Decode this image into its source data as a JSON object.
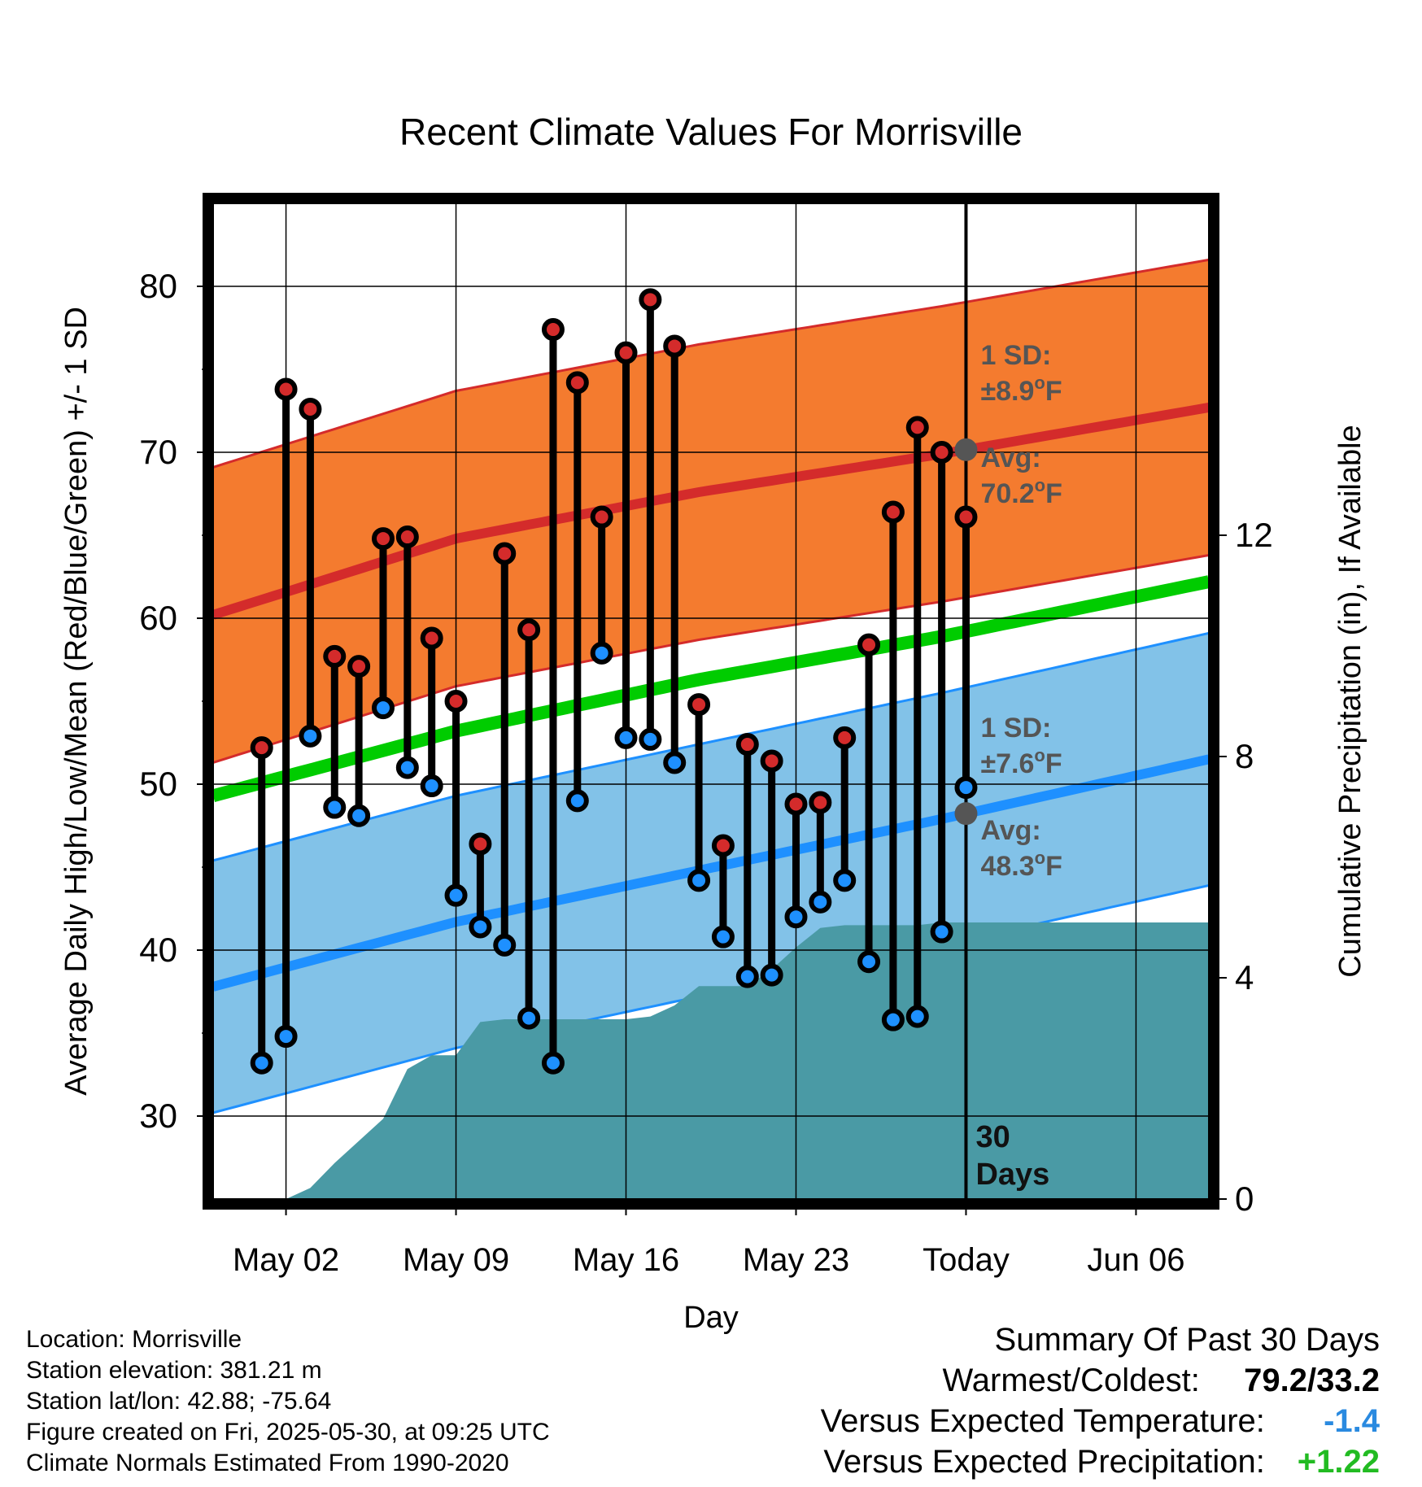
{
  "chart_data": {
    "type": "line",
    "title": "Recent Climate Values For Morrisville",
    "xlabel": "Day",
    "ylabel": "Average Daily High/Low/Mean (Red/Blue/Green) +/- 1 SD",
    "y2label": "Cumulative Precipitation (in), If Available",
    "ylim": [
      25,
      85
    ],
    "y_ticks": [
      30,
      40,
      50,
      60,
      70,
      80
    ],
    "y2lim": [
      0,
      18
    ],
    "y2_ticks": [
      0,
      4,
      8,
      12
    ],
    "x_dates": [
      "Apr 29",
      "Jun 09"
    ],
    "x_tick_dates": [
      "May 02",
      "May 09",
      "May 16",
      "May 23",
      "May 30",
      "Jun 06"
    ],
    "x_tick_labels": [
      "May 02",
      "May 09",
      "May 16",
      "May 23",
      "Today",
      "Jun 06"
    ],
    "grid": true,
    "today": "May 30",
    "today_label": "30\nDays",
    "normals": {
      "dates": [
        "Apr 29",
        "May 09",
        "May 19",
        "May 29",
        "Jun 09"
      ],
      "avg_high": [
        60.2,
        64.8,
        67.6,
        69.9,
        72.7
      ],
      "avg_low": [
        37.8,
        41.7,
        44.8,
        47.9,
        51.5
      ],
      "avg_mean": [
        49.3,
        53.2,
        56.3,
        58.9,
        62.2
      ],
      "high_sd": 8.9,
      "low_sd": 7.6
    },
    "series": [
      {
        "name": "High",
        "dates": [
          "May 01",
          "May 02",
          "May 03",
          "May 04",
          "May 05",
          "May 06",
          "May 07",
          "May 08",
          "May 09",
          "May 10",
          "May 11",
          "May 12",
          "May 13",
          "May 14",
          "May 15",
          "May 16",
          "May 17",
          "May 18",
          "May 19",
          "May 20",
          "May 21",
          "May 22",
          "May 23",
          "May 24",
          "May 25",
          "May 26",
          "May 27",
          "May 28",
          "May 29",
          "May 30"
        ],
        "values": [
          52.2,
          73.8,
          72.6,
          57.7,
          57.1,
          64.8,
          64.9,
          58.8,
          55.0,
          46.4,
          63.9,
          59.3,
          77.4,
          74.2,
          66.1,
          76.0,
          79.2,
          76.4,
          54.8,
          46.3,
          52.4,
          51.4,
          48.8,
          48.9,
          52.8,
          58.4,
          66.4,
          71.5,
          70.0,
          66.1
        ]
      },
      {
        "name": "Low",
        "dates": [
          "May 01",
          "May 02",
          "May 03",
          "May 04",
          "May 05",
          "May 06",
          "May 07",
          "May 08",
          "May 09",
          "May 10",
          "May 11",
          "May 12",
          "May 13",
          "May 14",
          "May 15",
          "May 16",
          "May 17",
          "May 18",
          "May 19",
          "May 20",
          "May 21",
          "May 22",
          "May 23",
          "May 24",
          "May 25",
          "May 26",
          "May 27",
          "May 28",
          "May 29",
          "May 30"
        ],
        "values": [
          33.2,
          34.8,
          52.9,
          48.6,
          48.1,
          54.6,
          51.0,
          49.9,
          43.3,
          41.4,
          40.3,
          35.9,
          33.2,
          49.0,
          57.9,
          52.8,
          52.7,
          51.3,
          44.2,
          40.8,
          38.4,
          38.5,
          42.0,
          42.9,
          44.2,
          39.3,
          35.8,
          36.0,
          41.1,
          49.8
        ]
      },
      {
        "name": "Cumulative Precipitation",
        "dates": [
          "Apr 29",
          "May 02",
          "May 03",
          "May 04",
          "May 05",
          "May 06",
          "May 07",
          "May 08",
          "May 09",
          "May 10",
          "May 11",
          "May 12",
          "May 13",
          "May 14",
          "May 15",
          "May 16",
          "May 17",
          "May 18",
          "May 19",
          "May 20",
          "May 21",
          "May 22",
          "May 23",
          "May 24",
          "May 25",
          "May 26",
          "May 27",
          "May 28",
          "May 29",
          "May 30",
          "Jun 09"
        ],
        "values": [
          0,
          0,
          0.2,
          0.65,
          1.05,
          1.45,
          2.35,
          2.6,
          2.6,
          3.2,
          3.25,
          3.25,
          3.25,
          3.25,
          3.25,
          3.25,
          3.3,
          3.5,
          3.85,
          3.85,
          3.85,
          4.15,
          4.55,
          4.9,
          4.95,
          4.95,
          4.95,
          4.95,
          5.0,
          5.0,
          5.0
        ]
      }
    ],
    "annotations": {
      "high_sd_label": "1 SD:",
      "high_sd_value": "±8.9",
      "high_avg_label": "Avg:",
      "high_avg_value": "70.2",
      "low_sd_label": "1 SD:",
      "low_sd_value": "±7.6",
      "low_avg_label": "Avg:",
      "low_avg_value": "48.3",
      "unit": "F",
      "degree": "o"
    },
    "colors": {
      "high_band": "#f47b2f",
      "high_line": "#d42b2b",
      "low_band": "#82c2e8",
      "low_line": "#1e90ff",
      "mean_line": "#00cc00",
      "precip": "#4a9aa5",
      "high_marker": "#d42b2b",
      "low_marker": "#1e90ff",
      "annotation": "#555555"
    }
  },
  "info": {
    "location": "Location: Morrisville",
    "elevation": "Station elevation: 381.21 m",
    "latlon": "Station lat/lon: 42.88; -75.64",
    "created": "Figure created on Fri, 2025-05-30, at 09:25 UTC",
    "normals": "Climate Normals Estimated From 1990-2020"
  },
  "summary": {
    "title": "Summary Of Past 30 Days",
    "warmest_label": "Warmest/Coldest:",
    "warmest_value": "79.2/33.2",
    "temp_label": "Versus Expected Temperature:",
    "temp_value": "-1.4",
    "temp_color": "#2a8ae0",
    "precip_label": "Versus Expected Precipitation:",
    "precip_value": "+1.22",
    "precip_color": "#22bb22"
  }
}
